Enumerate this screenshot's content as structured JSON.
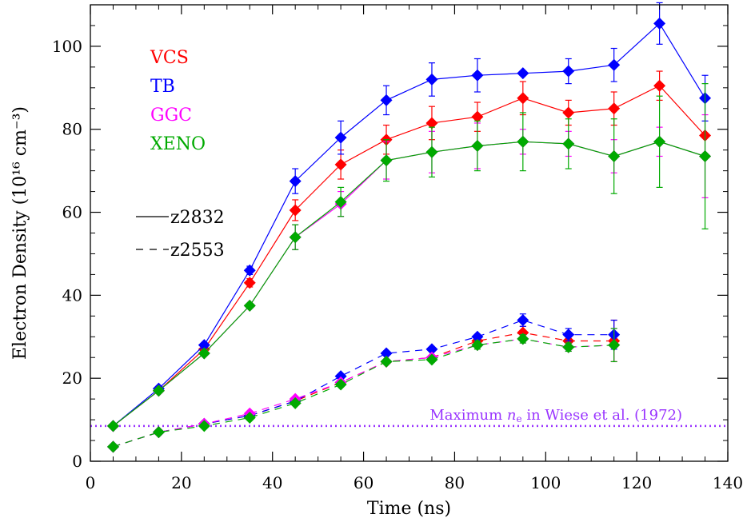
{
  "chart_data": {
    "type": "line",
    "xlabel": "Time (ns)",
    "ylabel": "Electron Density (10¹⁶ cm⁻³)",
    "xlim": [
      0,
      140
    ],
    "ylim": [
      0,
      110
    ],
    "xticks": [
      0,
      20,
      40,
      60,
      80,
      100,
      120,
      140
    ],
    "yticks": [
      0,
      20,
      40,
      60,
      80,
      100
    ],
    "grid": false,
    "models": [
      {
        "name": "VCS",
        "color": "#ff0000"
      },
      {
        "name": "TB",
        "color": "#0000ff"
      },
      {
        "name": "GGC",
        "color": "#ff00ff"
      },
      {
        "name": "XENO",
        "color": "#00aa00"
      }
    ],
    "shots": [
      {
        "name": "z2832",
        "linestyle": "solid"
      },
      {
        "name": "z2553",
        "linestyle": "dashed"
      }
    ],
    "series": [
      {
        "model": "VCS",
        "shot": "z2832",
        "color": "#ff0000",
        "x": [
          5,
          15,
          25,
          35,
          45,
          55,
          65,
          75,
          85,
          95,
          105,
          115,
          125,
          135
        ],
        "y": [
          8.5,
          17,
          27,
          43,
          60.5,
          71.5,
          77.5,
          81.5,
          83,
          87.5,
          84,
          85,
          90.5,
          78.5
        ],
        "err": [
          0,
          0,
          0,
          1,
          2.5,
          3.5,
          3.5,
          4,
          3.5,
          4,
          3,
          4,
          3.5,
          0
        ]
      },
      {
        "model": "TB",
        "shot": "z2832",
        "color": "#0000ff",
        "x": [
          5,
          15,
          25,
          35,
          45,
          55,
          65,
          75,
          85,
          95,
          105,
          115,
          125,
          135
        ],
        "y": [
          8.5,
          17.5,
          28,
          46,
          67.5,
          78,
          87,
          92,
          93,
          93.5,
          94,
          95.5,
          105.5,
          87.5
        ],
        "err": [
          0,
          0,
          0,
          1,
          3,
          4,
          3.5,
          4,
          4,
          0,
          3,
          4,
          5,
          5.5
        ]
      },
      {
        "model": "GGC",
        "shot": "z2832",
        "color": "#ff00ff",
        "x": [
          5,
          15,
          25,
          35,
          45,
          55,
          65,
          75,
          85,
          95,
          105,
          115,
          125,
          135
        ],
        "y": [
          8.5,
          17,
          26,
          37.5,
          54,
          62,
          72.5,
          74.5,
          76,
          77,
          76.5,
          73.5,
          77,
          73.5
        ],
        "err": [
          0,
          0,
          0,
          0,
          3,
          3,
          4.5,
          5,
          5.5,
          3,
          3,
          4,
          3.5,
          10
        ]
      },
      {
        "model": "XENO",
        "shot": "z2832",
        "color": "#00aa00",
        "x": [
          5,
          15,
          25,
          35,
          45,
          55,
          65,
          75,
          85,
          95,
          105,
          115,
          125,
          135
        ],
        "y": [
          8.5,
          17,
          26,
          37.5,
          54,
          62.5,
          72.5,
          74.5,
          76,
          77,
          76.5,
          73.5,
          77,
          73.5
        ],
        "err": [
          0,
          0,
          0,
          0,
          3,
          3.5,
          5,
          6,
          6,
          7,
          6,
          9,
          11,
          17.5
        ]
      },
      {
        "model": "VCS",
        "shot": "z2553",
        "color": "#ff0000",
        "x": [
          5,
          15,
          25,
          35,
          45,
          55,
          65,
          75,
          85,
          95,
          105,
          115
        ],
        "y": [
          3.5,
          7,
          9,
          11,
          14.5,
          19,
          24,
          25,
          29,
          31,
          29,
          29
        ],
        "err": [
          0,
          0,
          0,
          0,
          0,
          0,
          0,
          0,
          1,
          1.5,
          1,
          5
        ]
      },
      {
        "model": "TB",
        "shot": "z2553",
        "color": "#0000ff",
        "x": [
          5,
          15,
          25,
          35,
          45,
          55,
          65,
          75,
          85,
          95,
          105,
          115
        ],
        "y": [
          3.5,
          7,
          9,
          11,
          14.5,
          20.5,
          26,
          27,
          30,
          34,
          30.5,
          30.5
        ],
        "err": [
          0,
          0,
          0,
          0,
          0,
          0,
          0,
          0,
          0,
          1.5,
          1.5,
          3.5
        ]
      },
      {
        "model": "GGC",
        "shot": "z2553",
        "color": "#ff00ff",
        "x": [
          5,
          15,
          25,
          35,
          45,
          55,
          65,
          75,
          85,
          95,
          105,
          115
        ],
        "y": [
          3.5,
          7,
          9,
          11.5,
          15,
          19,
          24,
          25,
          28,
          29.5,
          27.5,
          28
        ],
        "err": [
          0,
          0,
          0,
          0,
          0,
          0,
          0,
          0,
          0,
          1,
          1,
          4
        ]
      },
      {
        "model": "XENO",
        "shot": "z2553",
        "color": "#00aa00",
        "x": [
          5,
          15,
          25,
          35,
          45,
          55,
          65,
          75,
          85,
          95,
          105,
          115
        ],
        "y": [
          3.5,
          7,
          8.5,
          10.5,
          14,
          18.5,
          24,
          24.5,
          28,
          29.5,
          27.5,
          28
        ],
        "err": [
          0,
          0,
          0,
          0,
          0,
          0,
          0,
          0,
          1,
          1,
          1,
          4
        ]
      }
    ],
    "reference_line": {
      "y": 8.5,
      "color": "#9933ff",
      "linestyle": "dotted",
      "label_prefix": "Maximum ",
      "label_symbol": "n",
      "label_subscript": "e",
      "label_suffix": " in Wiese et al. (1972)"
    }
  }
}
